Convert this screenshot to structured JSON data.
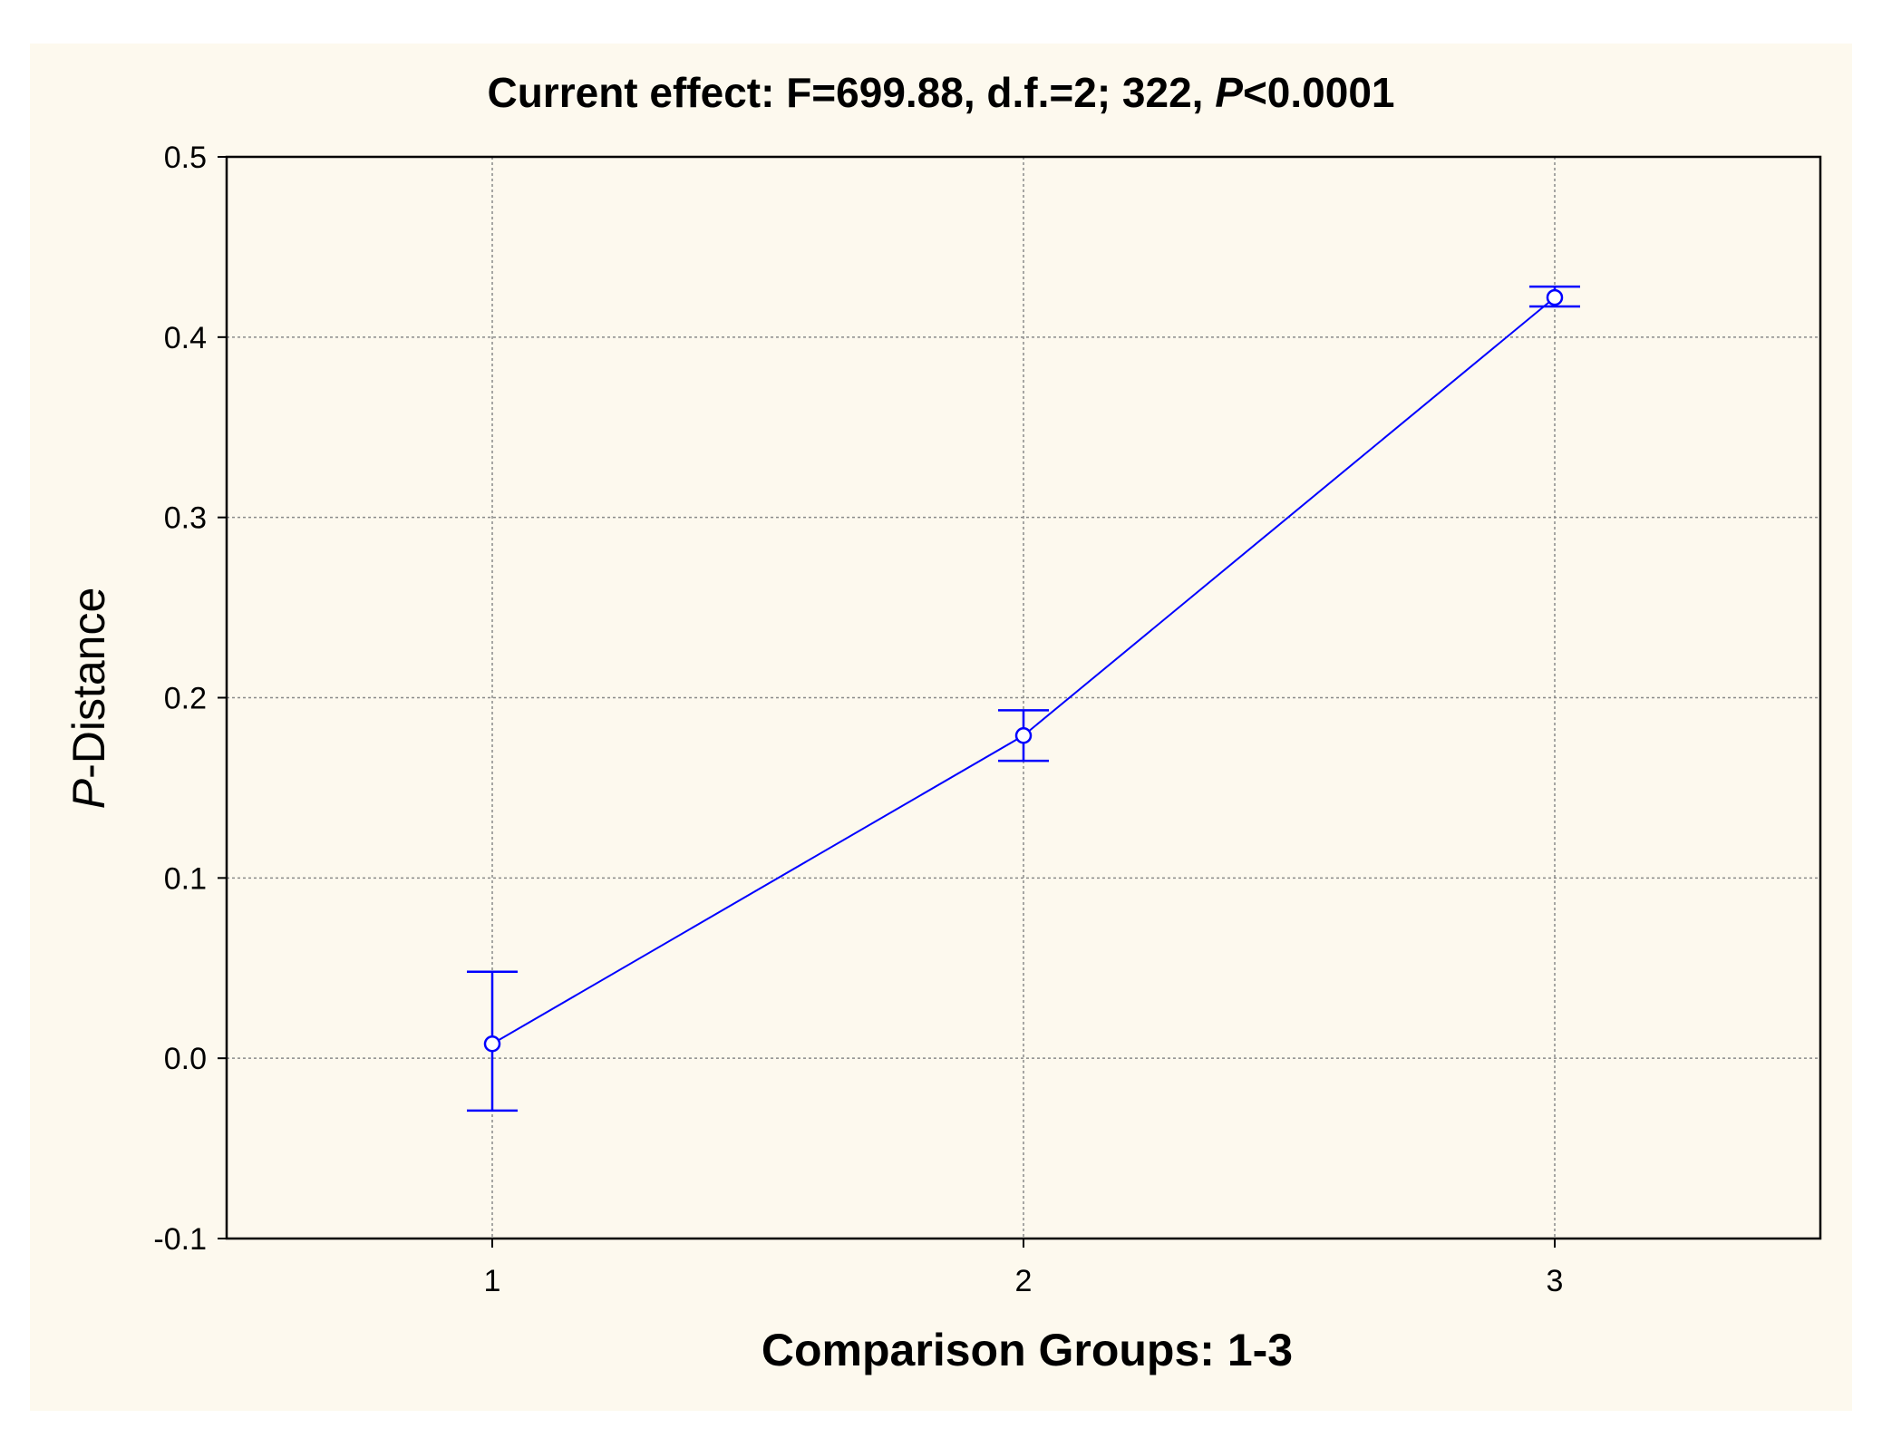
{
  "chart_data": {
    "type": "line",
    "title_main": "Current effect: F=699.88, d.f.=2; 322, ",
    "title_p": "P",
    "title_rest": "<0.0001",
    "xlabel": "Comparison Groups: 1-3",
    "ylabel_italic": "P",
    "ylabel_rest": "-Distance",
    "categories": [
      "1",
      "2",
      "3"
    ],
    "x": [
      1,
      2,
      3
    ],
    "xlim": [
      0.5,
      3.5
    ],
    "ylim": [
      -0.1,
      0.5
    ],
    "yticks": [
      "-0.1",
      "0.0",
      "0.1",
      "0.2",
      "0.3",
      "0.4",
      "0.5"
    ],
    "grid": true,
    "series": [
      {
        "values": [
          0.008,
          0.179,
          0.422
        ],
        "error_low": [
          -0.029,
          0.165,
          0.417
        ],
        "error_high": [
          0.048,
          0.193,
          0.428
        ],
        "color": "#0000ff"
      }
    ]
  }
}
